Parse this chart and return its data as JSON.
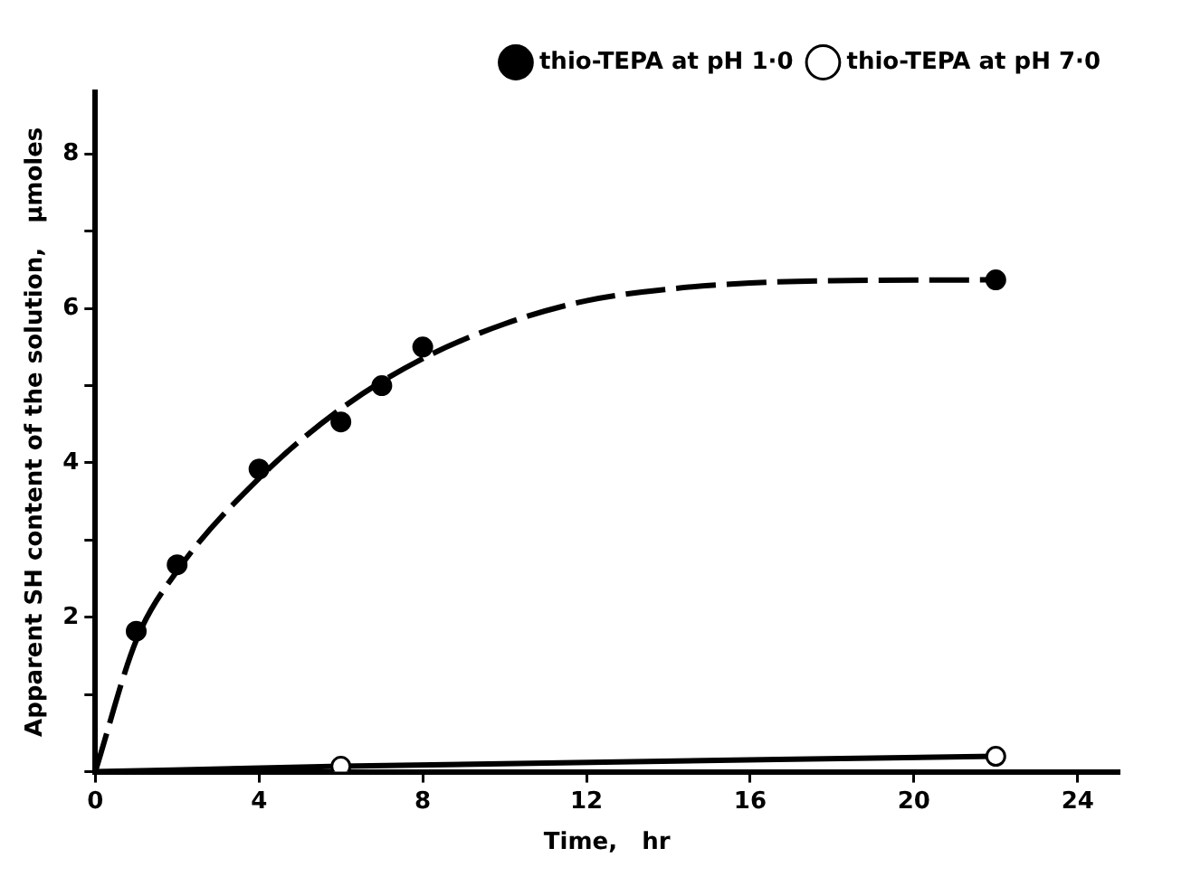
{
  "chart_data": {
    "type": "scatter",
    "xlabel": "Time,   hr",
    "ylabel": "Apparent SH content of the solution,   μmoles",
    "xlim": [
      0,
      25
    ],
    "xticks": [
      0,
      4,
      8,
      12,
      16,
      20,
      24
    ],
    "ylim": [
      0,
      8.8
    ],
    "yticks": [
      {
        "value": 0,
        "label": null
      },
      {
        "value": 1,
        "label": null
      },
      2,
      {
        "value": 3,
        "label": null
      },
      4,
      {
        "value": 5,
        "label": null
      },
      6,
      {
        "value": 7,
        "label": null
      },
      8
    ],
    "grid": false,
    "legend": "top right",
    "series": [
      {
        "name": "thio-TEPA at pH 1·0",
        "marker": "circle",
        "color": "#000000",
        "x": [
          1,
          2,
          4,
          6,
          7,
          8,
          22
        ],
        "values": [
          1.82,
          2.68,
          3.92,
          4.53,
          5.0,
          5.5,
          6.37
        ]
      },
      {
        "type": "line",
        "marker": "none",
        "line_style": "dashed",
        "color": "#000000",
        "x": [
          0,
          1,
          2,
          4,
          6,
          8,
          10,
          12,
          14,
          16,
          18,
          22
        ],
        "values": [
          0,
          1.7,
          2.6,
          3.8,
          4.7,
          5.35,
          5.8,
          6.1,
          6.25,
          6.33,
          6.36,
          6.37
        ]
      },
      {
        "name": "thio-TEPA at pH 7·0",
        "marker": "circle",
        "color": "#ffffff",
        "x": [
          6,
          22
        ],
        "values": [
          0.07,
          0.2
        ]
      },
      {
        "type": "line",
        "marker": "none",
        "line_style": "solid",
        "color": "#000000",
        "x": [
          0,
          6,
          22
        ],
        "values": [
          0,
          0.07,
          0.2
        ]
      }
    ]
  }
}
